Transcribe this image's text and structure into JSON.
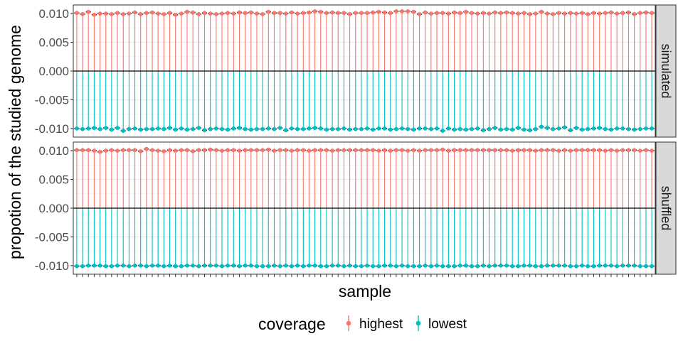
{
  "chart_data": {
    "type": "scatter",
    "variant": "lollipop",
    "xlabel": "sample",
    "ylabel": "propotion of the studied genome",
    "x_tick_labels_visible": false,
    "ylim": [
      -0.0115,
      0.0115
    ],
    "y_ticks": [
      -0.01,
      -0.005,
      0.0,
      0.005,
      0.01
    ],
    "y_tick_labels": [
      "-0.010",
      "-0.005",
      "0.000",
      "0.005",
      "0.010"
    ],
    "n_samples": 100,
    "facets": [
      {
        "label": "simulated",
        "series": [
          {
            "name": "highest",
            "color": "#F8766D",
            "values": [
              0.0101,
              0.0099,
              0.0103,
              0.0098,
              0.01,
              0.01,
              0.0099,
              0.0101,
              0.0099,
              0.01,
              0.0102,
              0.0099,
              0.0101,
              0.0102,
              0.01,
              0.0099,
              0.0101,
              0.0098,
              0.01,
              0.0103,
              0.0102,
              0.0099,
              0.0101,
              0.01,
              0.0099,
              0.01,
              0.0101,
              0.01,
              0.0102,
              0.0101,
              0.0102,
              0.01,
              0.0099,
              0.0103,
              0.0101,
              0.0101,
              0.01,
              0.0102,
              0.01,
              0.0101,
              0.0102,
              0.0104,
              0.0103,
              0.0101,
              0.0102,
              0.0101,
              0.0101,
              0.0099,
              0.0101,
              0.0101,
              0.0101,
              0.0102,
              0.0103,
              0.0102,
              0.0101,
              0.0104,
              0.0104,
              0.0104,
              0.0103,
              0.0099,
              0.0102,
              0.01,
              0.0101,
              0.0101,
              0.01,
              0.0102,
              0.0101,
              0.0103,
              0.0101,
              0.01,
              0.0101,
              0.01,
              0.0102,
              0.0101,
              0.0102,
              0.0101,
              0.01,
              0.0101,
              0.0099,
              0.01,
              0.0103,
              0.01,
              0.0099,
              0.0101,
              0.01,
              0.0101,
              0.01,
              0.0101,
              0.0099,
              0.0101,
              0.01,
              0.0101,
              0.0102,
              0.01,
              0.0101,
              0.0102,
              0.0099,
              0.0101,
              0.0102,
              0.0101
            ]
          },
          {
            "name": "lowest",
            "color": "#00BFC4",
            "values": [
              -0.01,
              -0.0101,
              -0.01,
              -0.0099,
              -0.0101,
              -0.0099,
              -0.0102,
              -0.0099,
              -0.0104,
              -0.0101,
              -0.01,
              -0.0102,
              -0.0101,
              -0.0101,
              -0.01,
              -0.0101,
              -0.0099,
              -0.0102,
              -0.01,
              -0.0102,
              -0.0101,
              -0.0099,
              -0.0103,
              -0.0101,
              -0.01,
              -0.0101,
              -0.0102,
              -0.01,
              -0.0099,
              -0.0101,
              -0.0102,
              -0.0101,
              -0.0101,
              -0.01,
              -0.0101,
              -0.0099,
              -0.0103,
              -0.01,
              -0.0101,
              -0.0101,
              -0.01,
              -0.0099,
              -0.01,
              -0.0102,
              -0.0101,
              -0.0101,
              -0.01,
              -0.0102,
              -0.0101,
              -0.0101,
              -0.01,
              -0.0102,
              -0.01,
              -0.01,
              -0.0102,
              -0.0101,
              -0.01,
              -0.0101,
              -0.0102,
              -0.01,
              -0.01,
              -0.0101,
              -0.01,
              -0.0104,
              -0.01,
              -0.0102,
              -0.0101,
              -0.0102,
              -0.0101,
              -0.01,
              -0.0103,
              -0.0101,
              -0.0099,
              -0.0102,
              -0.0101,
              -0.0102,
              -0.0099,
              -0.0102,
              -0.0103,
              -0.0101,
              -0.0097,
              -0.0099,
              -0.0101,
              -0.01,
              -0.0098,
              -0.0103,
              -0.0099,
              -0.0102,
              -0.0101,
              -0.01,
              -0.0099,
              -0.0101,
              -0.0102,
              -0.01,
              -0.01,
              -0.0101,
              -0.0102,
              -0.0101,
              -0.01,
              -0.01
            ]
          }
        ]
      },
      {
        "label": "shuffled",
        "series": [
          {
            "name": "highest",
            "color": "#F8766D",
            "values": [
              0.0101,
              0.0101,
              0.0101,
              0.01,
              0.0098,
              0.01,
              0.0101,
              0.01,
              0.0101,
              0.0101,
              0.0101,
              0.0099,
              0.0103,
              0.0101,
              0.01,
              0.0099,
              0.0101,
              0.01,
              0.0101,
              0.0101,
              0.0099,
              0.0101,
              0.0101,
              0.0102,
              0.0101,
              0.01,
              0.0101,
              0.0101,
              0.01,
              0.0101,
              0.0101,
              0.0101,
              0.0101,
              0.0102,
              0.01,
              0.0101,
              0.0101,
              0.01,
              0.0101,
              0.0101,
              0.01,
              0.0101,
              0.0101,
              0.0101,
              0.01,
              0.0101,
              0.0101,
              0.0101,
              0.0101,
              0.0101,
              0.0101,
              0.0101,
              0.01,
              0.0101,
              0.01,
              0.0101,
              0.0101,
              0.01,
              0.0101,
              0.01,
              0.0101,
              0.0101,
              0.0101,
              0.0102,
              0.01,
              0.0101,
              0.0101,
              0.0101,
              0.0101,
              0.0101,
              0.0101,
              0.0101,
              0.0101,
              0.0101,
              0.0101,
              0.01,
              0.0101,
              0.0101,
              0.0101,
              0.01,
              0.0101,
              0.0101,
              0.0101,
              0.01,
              0.0101,
              0.01,
              0.0101,
              0.0101,
              0.0101,
              0.0101,
              0.0101,
              0.01,
              0.0101,
              0.01,
              0.0101,
              0.0101,
              0.0101,
              0.01,
              0.0101,
              0.01
            ]
          },
          {
            "name": "lowest",
            "color": "#00BFC4",
            "values": [
              -0.0101,
              -0.0101,
              -0.01,
              -0.01,
              -0.01,
              -0.0101,
              -0.0101,
              -0.01,
              -0.01,
              -0.0101,
              -0.01,
              -0.01,
              -0.0101,
              -0.01,
              -0.01,
              -0.0101,
              -0.01,
              -0.0101,
              -0.0101,
              -0.01,
              -0.01,
              -0.0101,
              -0.01,
              -0.01,
              -0.01,
              -0.0101,
              -0.01,
              -0.01,
              -0.0101,
              -0.01,
              -0.01,
              -0.0101,
              -0.0101,
              -0.0101,
              -0.01,
              -0.0101,
              -0.01,
              -0.0101,
              -0.01,
              -0.0101,
              -0.01,
              -0.01,
              -0.0101,
              -0.0101,
              -0.01,
              -0.01,
              -0.0101,
              -0.01,
              -0.0101,
              -0.0101,
              -0.01,
              -0.0101,
              -0.0101,
              -0.01,
              -0.01,
              -0.0101,
              -0.01,
              -0.0101,
              -0.0101,
              -0.0101,
              -0.01,
              -0.0101,
              -0.01,
              -0.0101,
              -0.0101,
              -0.0101,
              -0.01,
              -0.01,
              -0.0101,
              -0.0101,
              -0.01,
              -0.0101,
              -0.01,
              -0.01,
              -0.01,
              -0.0101,
              -0.0101,
              -0.01,
              -0.01,
              -0.0101,
              -0.0101,
              -0.01,
              -0.01,
              -0.01,
              -0.01,
              -0.0101,
              -0.0101,
              -0.01,
              -0.0101,
              -0.0101,
              -0.01,
              -0.01,
              -0.01,
              -0.0101,
              -0.01,
              -0.01,
              -0.01,
              -0.0101,
              -0.0101,
              -0.0101
            ]
          }
        ]
      }
    ],
    "legend": {
      "title": "coverage",
      "position": "bottom",
      "entries": [
        {
          "label": "highest",
          "color": "#F8766D"
        },
        {
          "label": "lowest",
          "color": "#00BFC4"
        }
      ]
    },
    "grid": true,
    "panel_background": "#ffffff",
    "strip_background": "#d9d9d9",
    "mean_marker_color": "#000000"
  }
}
